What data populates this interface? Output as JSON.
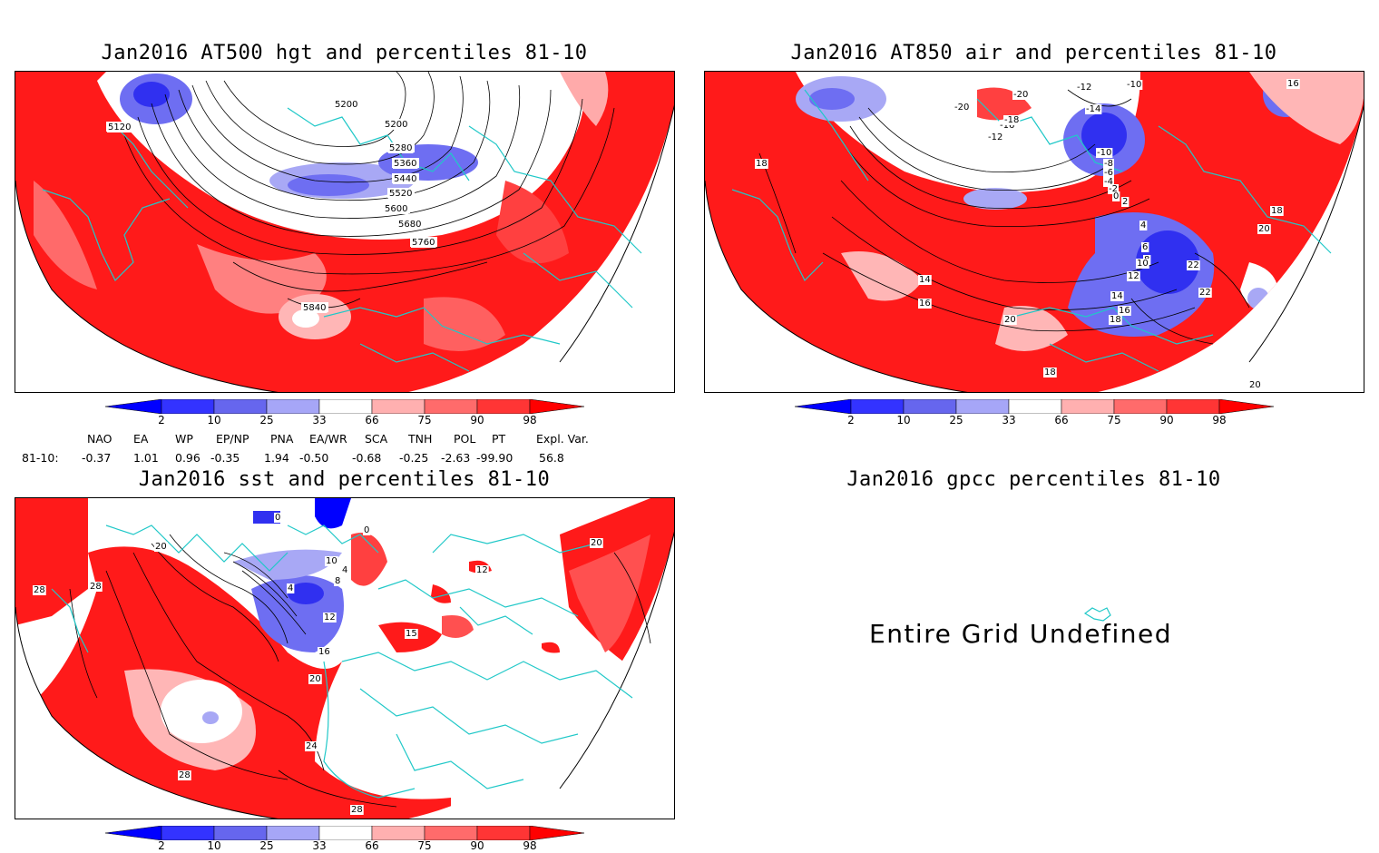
{
  "panels": [
    {
      "title": "Jan2016 AT500 hgt and percentiles 81-10",
      "contour_labels": [
        "5120",
        "5200",
        "5200",
        "5280",
        "5360",
        "5440",
        "5520",
        "5600",
        "5680",
        "5760",
        "5840"
      ]
    },
    {
      "title": "Jan2016 AT850 air and percentiles 81-10",
      "contour_labels": [
        "-20",
        "-20",
        "-12",
        "-10",
        "-16",
        "-18",
        "-12",
        "-14",
        "-10",
        "-8",
        "-6",
        "-4",
        "-2",
        "0",
        "2",
        "4",
        "6",
        "8",
        "10",
        "12",
        "14",
        "16",
        "18",
        "20",
        "22",
        "16",
        "18",
        "14",
        "16",
        "18",
        "20",
        "22",
        "18",
        "20"
      ]
    },
    {
      "title": "Jan2016 sst and percentiles 81-10",
      "contour_labels": [
        "0",
        "0",
        "20",
        "28",
        "28",
        "10",
        "4",
        "8",
        "4",
        "12",
        "16",
        "20",
        "24",
        "28",
        "28",
        "12",
        "15",
        "20"
      ]
    },
    {
      "title": "Jan2016 gpcc percentiles 81-10",
      "message": "Entire Grid Undefined"
    }
  ],
  "colorbar": {
    "labels": [
      "2",
      "10",
      "25",
      "33",
      "66",
      "75",
      "90",
      "98"
    ],
    "colors": [
      "#0000ff",
      "#3333ff",
      "#6666ee",
      "#a6a6f7",
      "#ffffff",
      "#ffb0b0",
      "#ff6b6b",
      "#ff3535",
      "#ff0000"
    ]
  },
  "indices": {
    "headers": [
      "NAO",
      "EA",
      "WP",
      "EP/NP",
      "PNA",
      "EA/WR",
      "SCA",
      "TNH",
      "POL",
      "PT",
      "Expl. Var."
    ],
    "row_label": "81-10:",
    "values": [
      "-0.37",
      "1.01",
      "0.96",
      "-0.35",
      "1.94",
      "-0.50",
      "-0.68",
      "-0.25",
      "-2.63",
      "-99.90",
      "56.8"
    ]
  }
}
